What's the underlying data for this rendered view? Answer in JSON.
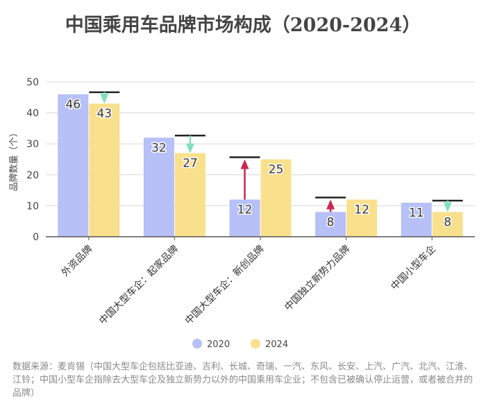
{
  "chart_data": {
    "type": "bar",
    "title": "中国乘用车品牌市场构成（2020-2024）",
    "xlabel": "",
    "ylabel": "品牌数量（个）",
    "ylim": [
      0,
      50
    ],
    "yticks": [
      0,
      10,
      20,
      30,
      40,
      50
    ],
    "grid": true,
    "categories": [
      "外资品牌",
      "中国大型车企：起家品牌",
      "中国大型车企：新创品牌",
      "中国独立新势力品牌",
      "中国小型车企"
    ],
    "series": [
      {
        "name": "2020",
        "values": [
          46,
          32,
          12,
          8,
          11
        ],
        "color": "#b7c0f7"
      },
      {
        "name": "2024",
        "values": [
          43,
          27,
          25,
          12,
          8
        ],
        "color": "#f9e08d"
      }
    ],
    "legend_position": "bottom",
    "increase_color": "#c8284f",
    "decrease_color": "#7ee0c0"
  },
  "source": "数据来源：麦肯锡（中国大型车企包括比亚迪、吉利、长城、奇瑞、一汽、东风、长安、上汽、广汽、北汽、江淮、江铃；中国小型车企指除去大型车企及独立新势力以外的中国乘用车企业；不包含已被确认停止运营，或者被合并的品牌）"
}
